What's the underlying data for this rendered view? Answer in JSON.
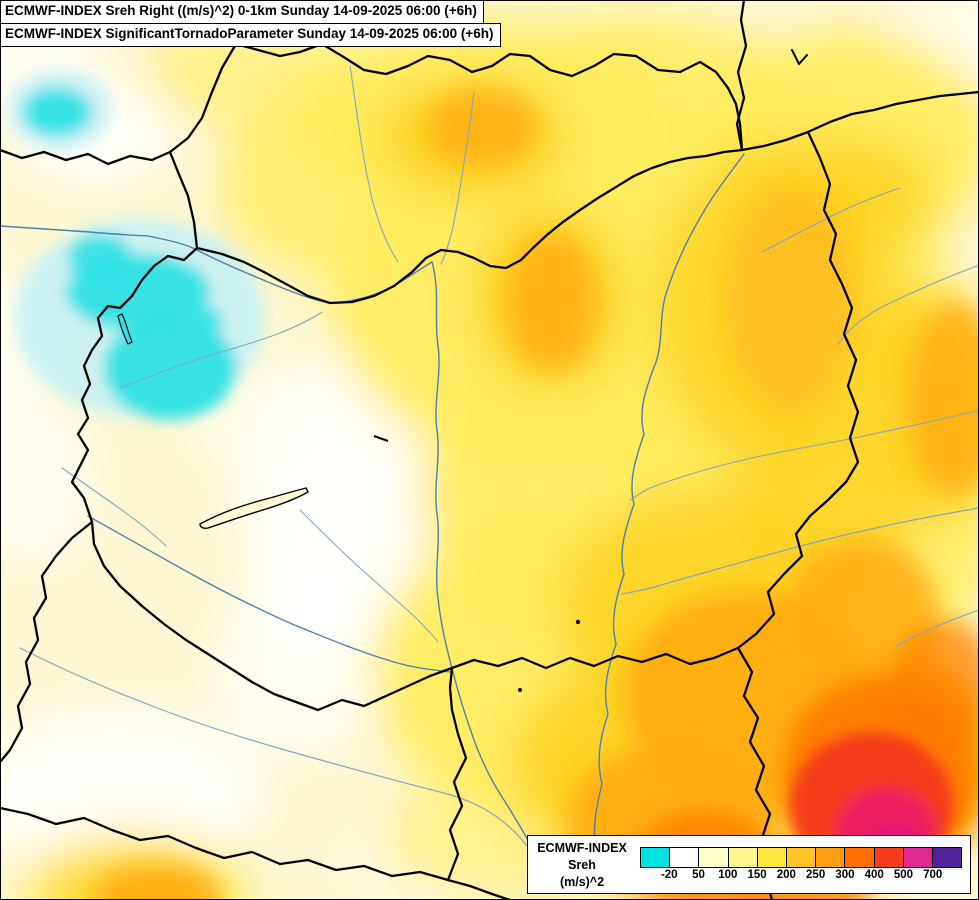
{
  "header": {
    "line1": "ECMWF-INDEX Sreh Right ((m/s)^2) 0-1km Sunday 14-09-2025 06:00 (+6h)",
    "line2": "ECMWF-INDEX SignificantTornadoParameter Sunday 14-09-2025 06:00 (+6h)"
  },
  "legend": {
    "title": "ECMWF-INDEX",
    "parameter": "Sreh",
    "units": "(m/s)^2",
    "ticks": [
      "-20",
      "50",
      "100",
      "150",
      "200",
      "250",
      "300",
      "400",
      "500",
      "700"
    ],
    "swatches": [
      "#00E1E1",
      "#FFFFFF",
      "#FFFFC8",
      "#FFF78C",
      "#FFE53C",
      "#FFC328",
      "#FF9E14",
      "#FF6E00",
      "#F53C1E",
      "#E12891",
      "#50239B"
    ],
    "accent_colors": {
      "cyan_low": "#2FE1E5",
      "background_cream": "#FDF8D2",
      "hotspot_red": "#F43A1C",
      "hotspot_magenta": "#ED1E63"
    }
  }
}
